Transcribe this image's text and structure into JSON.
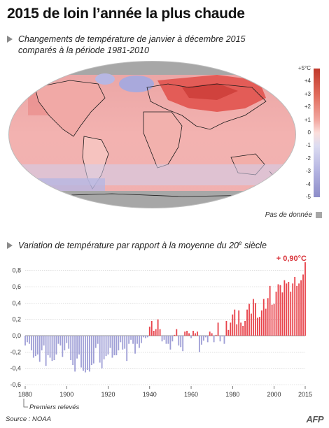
{
  "title": "2015 de loin l’année la plus chaude",
  "map": {
    "heading_line1": "Changements de température de janvier à décembre 2015",
    "heading_line2": "comparés à la période 1981-2010",
    "legend_ticks": [
      "+5°C",
      "+4",
      "+3",
      "+2",
      "+1",
      "0",
      "-1",
      "-2",
      "-3",
      "-4",
      "-5"
    ],
    "nodata_label": "Pas de donnée",
    "colors": {
      "warm_strong": "#c0392b",
      "warm_light": "#f4b5b0",
      "cold_light": "#cfcfee",
      "cold_strong": "#8c8cc8",
      "no_data": "#a7a7a7"
    }
  },
  "chart_heading": "Variation de température par rapport à la moyenne du 20",
  "chart_heading_sup": "e",
  "chart_heading_end": " siècle",
  "chart_data": {
    "type": "bar",
    "x": [
      1880,
      1881,
      1882,
      1883,
      1884,
      1885,
      1886,
      1887,
      1888,
      1889,
      1890,
      1891,
      1892,
      1893,
      1894,
      1895,
      1896,
      1897,
      1898,
      1899,
      1900,
      1901,
      1902,
      1903,
      1904,
      1905,
      1906,
      1907,
      1908,
      1909,
      1910,
      1911,
      1912,
      1913,
      1914,
      1915,
      1916,
      1917,
      1918,
      1919,
      1920,
      1921,
      1922,
      1923,
      1924,
      1925,
      1926,
      1927,
      1928,
      1929,
      1930,
      1931,
      1932,
      1933,
      1934,
      1935,
      1936,
      1937,
      1938,
      1939,
      1940,
      1941,
      1942,
      1943,
      1944,
      1945,
      1946,
      1947,
      1948,
      1949,
      1950,
      1951,
      1952,
      1953,
      1954,
      1955,
      1956,
      1957,
      1958,
      1959,
      1960,
      1961,
      1962,
      1963,
      1964,
      1965,
      1966,
      1967,
      1968,
      1969,
      1970,
      1971,
      1972,
      1973,
      1974,
      1975,
      1976,
      1977,
      1978,
      1979,
      1980,
      1981,
      1982,
      1983,
      1984,
      1985,
      1986,
      1987,
      1988,
      1989,
      1990,
      1991,
      1992,
      1993,
      1994,
      1995,
      1996,
      1997,
      1998,
      1999,
      2000,
      2001,
      2002,
      2003,
      2004,
      2005,
      2006,
      2007,
      2008,
      2009,
      2010,
      2011,
      2012,
      2013,
      2014,
      2015
    ],
    "values": [
      -0.12,
      -0.08,
      -0.1,
      -0.18,
      -0.27,
      -0.25,
      -0.23,
      -0.32,
      -0.18,
      -0.12,
      -0.37,
      -0.24,
      -0.27,
      -0.31,
      -0.3,
      -0.23,
      -0.1,
      -0.12,
      -0.26,
      -0.18,
      -0.09,
      -0.16,
      -0.3,
      -0.36,
      -0.44,
      -0.28,
      -0.23,
      -0.39,
      -0.43,
      -0.45,
      -0.42,
      -0.44,
      -0.36,
      -0.34,
      -0.15,
      -0.1,
      -0.33,
      -0.4,
      -0.29,
      -0.25,
      -0.23,
      -0.15,
      -0.27,
      -0.24,
      -0.24,
      -0.18,
      -0.08,
      -0.17,
      -0.16,
      -0.31,
      -0.1,
      -0.05,
      -0.1,
      -0.22,
      -0.1,
      -0.15,
      -0.09,
      -0.02,
      -0.03,
      -0.02,
      0.11,
      0.18,
      0.06,
      0.08,
      0.2,
      0.08,
      -0.07,
      -0.05,
      -0.1,
      -0.1,
      -0.17,
      -0.07,
      0.01,
      0.08,
      -0.12,
      -0.14,
      -0.19,
      0.05,
      0.06,
      0.03,
      -0.03,
      0.06,
      0.03,
      0.05,
      -0.2,
      -0.11,
      -0.06,
      -0.02,
      -0.08,
      0.05,
      0.03,
      -0.08,
      0.01,
      0.16,
      -0.07,
      -0.01,
      -0.1,
      0.18,
      0.07,
      0.16,
      0.26,
      0.32,
      0.14,
      0.31,
      0.16,
      0.12,
      0.18,
      0.32,
      0.39,
      0.27,
      0.45,
      0.4,
      0.22,
      0.23,
      0.31,
      0.45,
      0.33,
      0.46,
      0.61,
      0.38,
      0.39,
      0.54,
      0.63,
      0.62,
      0.53,
      0.68,
      0.64,
      0.66,
      0.54,
      0.64,
      0.72,
      0.61,
      0.64,
      0.68,
      0.75,
      0.9
    ],
    "ylim": [
      -0.6,
      0.9
    ],
    "y_ticks": [
      "0,8",
      "0,6",
      "0,4",
      "0,2",
      "0,0",
      "-0,2",
      "-0,4",
      "-0,6"
    ],
    "x_ticks": [
      "1880",
      "1900",
      "1920",
      "1940",
      "1960",
      "1980",
      "2000",
      "2015"
    ],
    "annotation": "+ 0,90°C",
    "note": "Premiers relevés",
    "colors": {
      "positive": "#e8434b",
      "negative": "#9f9fd6",
      "annotation": "#d9343b",
      "grid": "#c8c8c8"
    }
  },
  "source": "Source : NOAA",
  "logo": "AFP"
}
